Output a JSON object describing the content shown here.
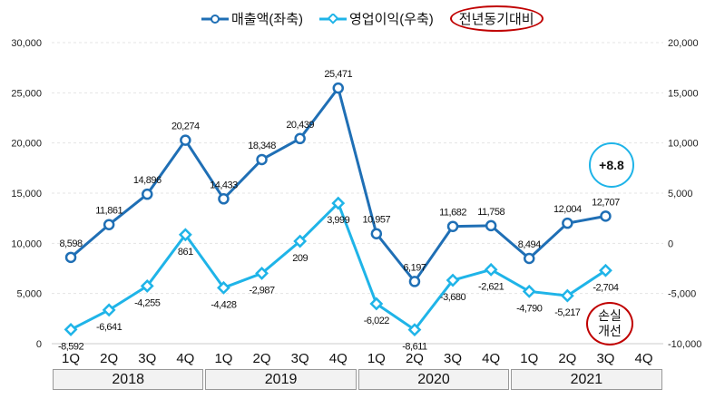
{
  "chart_data": {
    "type": "line",
    "categories": [
      "1Q",
      "2Q",
      "3Q",
      "4Q",
      "1Q",
      "2Q",
      "3Q",
      "4Q",
      "1Q",
      "2Q",
      "3Q",
      "4Q",
      "1Q",
      "2Q",
      "3Q",
      "4Q"
    ],
    "years": [
      "2018",
      "2019",
      "2020",
      "2021"
    ],
    "series": [
      {
        "name": "매출액(좌축)",
        "axis": "left",
        "color": "#1f6fb5",
        "values": [
          8598,
          11861,
          14896,
          20274,
          14433,
          18348,
          20439,
          25471,
          10957,
          6197,
          11682,
          11758,
          8494,
          12004,
          12707,
          null
        ],
        "labels": [
          "8,598",
          "11,861",
          "14,896",
          "20,274",
          "14,433",
          "18,348",
          "20,439",
          "25,471",
          "10,957",
          "6,197",
          "11,682",
          "11,758",
          "8,494",
          "12,004",
          "12,707",
          ""
        ]
      },
      {
        "name": "영업이익(우축)",
        "axis": "right",
        "color": "#1fb4e8",
        "values": [
          -8592,
          -6641,
          -4255,
          861,
          -4428,
          -2987,
          209,
          3999,
          -6022,
          -8611,
          -3680,
          -2621,
          -4790,
          -5217,
          -2704,
          null
        ],
        "labels": [
          "-8,592",
          "-6,641",
          "-4,255",
          "861",
          "-4,428",
          "-2,987",
          "209",
          "3,999",
          "-6,022",
          "-8,611",
          "-3,680",
          "-2,621",
          "-4,790",
          "-5,217",
          "-2,704",
          ""
        ]
      }
    ],
    "left_axis": {
      "ylim": [
        0,
        30000
      ],
      "ticks": [
        "0",
        "5,000",
        "10,000",
        "15,000",
        "20,000",
        "25,000",
        "30,000"
      ]
    },
    "right_axis": {
      "ylim": [
        -10000,
        20000
      ],
      "ticks": [
        "-10,000",
        "-5,000",
        "0",
        "5,000",
        "10,000",
        "15,000",
        "20,000"
      ]
    },
    "legend_yoy": "전년동기대비",
    "annotations": {
      "growth": "+8.8",
      "loss_line1": "손실",
      "loss_line2": "개선"
    }
  }
}
